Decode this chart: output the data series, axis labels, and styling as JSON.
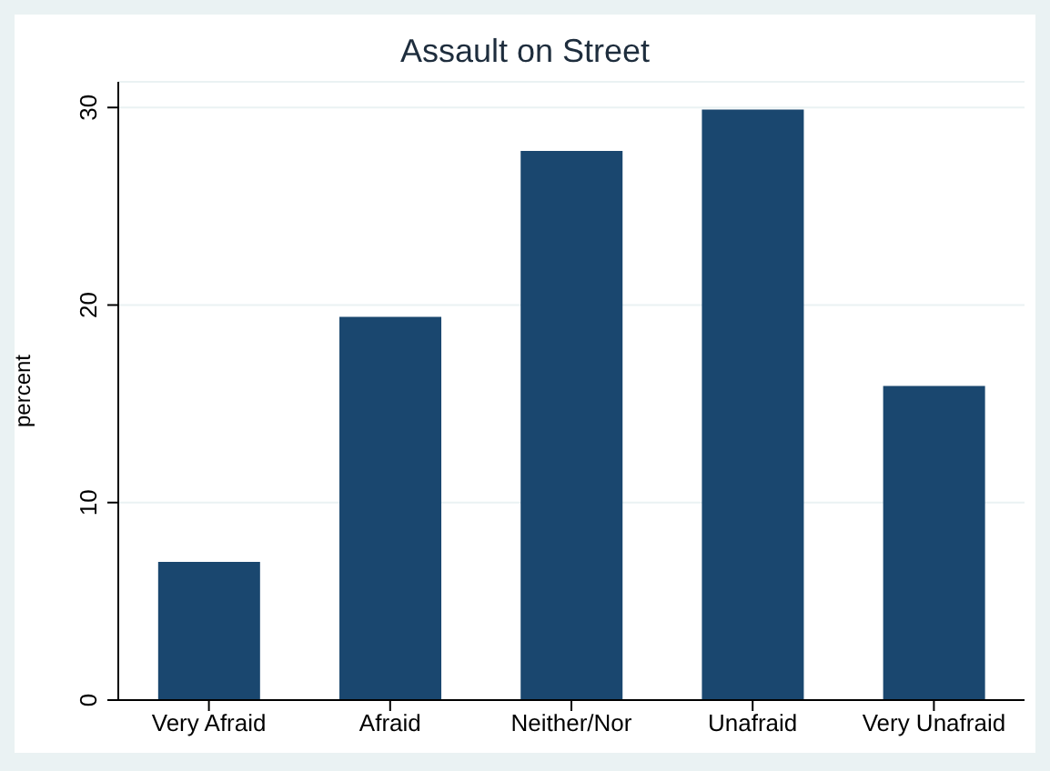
{
  "chart_data": {
    "type": "bar",
    "title": "Assault on Street",
    "ylabel": "percent",
    "categories": [
      "Very Afraid",
      "Afraid",
      "Neither/Nor",
      "Unafraid",
      "Very Unafraid"
    ],
    "values": [
      7.0,
      19.4,
      27.8,
      29.9,
      15.9
    ],
    "color": "#1a476f",
    "ylim": [
      0,
      31.3
    ],
    "yticks": [
      0,
      10,
      20,
      30
    ],
    "grid": "y"
  }
}
